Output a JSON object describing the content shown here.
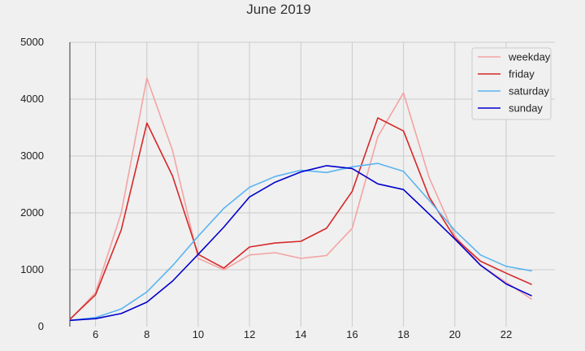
{
  "chart_data": {
    "type": "line",
    "title": "June 2019",
    "xlabel": "",
    "ylabel": "",
    "x": [
      5,
      6,
      7,
      8,
      9,
      10,
      11,
      12,
      13,
      14,
      15,
      16,
      17,
      18,
      19,
      20,
      21,
      22,
      23
    ],
    "xlim": [
      5,
      23.9
    ],
    "ylim": [
      0,
      5000
    ],
    "xticks": [
      6,
      8,
      10,
      12,
      14,
      16,
      18,
      20,
      22
    ],
    "yticks": [
      0,
      1000,
      2000,
      3000,
      4000,
      5000
    ],
    "grid": true,
    "legend": "top-right",
    "series": [
      {
        "name": "weekday",
        "color": "#f4a3a3",
        "values": [
          120,
          600,
          2000,
          4370,
          3100,
          1200,
          1000,
          1260,
          1300,
          1200,
          1250,
          1730,
          3340,
          4110,
          2620,
          1600,
          1080,
          780,
          480
        ]
      },
      {
        "name": "friday",
        "color": "#d62728",
        "values": [
          130,
          560,
          1700,
          3580,
          2650,
          1270,
          1030,
          1400,
          1470,
          1500,
          1730,
          2380,
          3670,
          3440,
          2280,
          1560,
          1150,
          940,
          740
        ]
      },
      {
        "name": "saturday",
        "color": "#5ab4f0",
        "values": [
          110,
          160,
          310,
          610,
          1070,
          1590,
          2080,
          2450,
          2640,
          2750,
          2710,
          2810,
          2870,
          2730,
          2220,
          1690,
          1260,
          1060,
          980
        ]
      },
      {
        "name": "sunday",
        "color": "#0000cc",
        "values": [
          110,
          140,
          230,
          430,
          800,
          1270,
          1750,
          2280,
          2540,
          2720,
          2830,
          2780,
          2510,
          2410,
          1980,
          1540,
          1080,
          750,
          540
        ]
      }
    ]
  }
}
